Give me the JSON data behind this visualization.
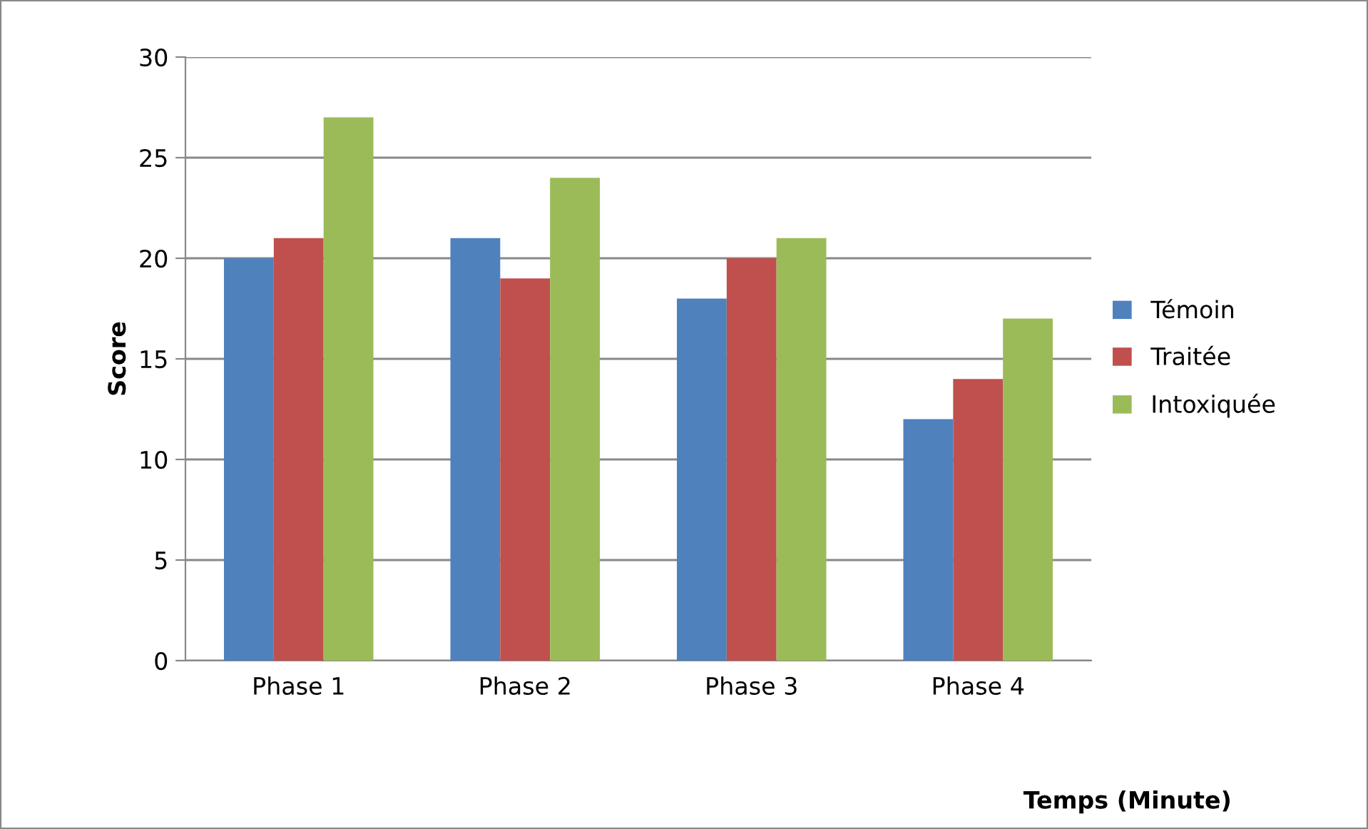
{
  "chart_data": {
    "type": "bar",
    "xlabel": "Temps (Minute)",
    "ylabel": "Score",
    "categories": [
      "Phase 1",
      "Phase 2",
      "Phase 3",
      "Phase 4"
    ],
    "series": [
      {
        "name": "Témoin",
        "color": "#4f81bd",
        "values": [
          20,
          21,
          18,
          12
        ]
      },
      {
        "name": "Traitée",
        "color": "#c0504d",
        "values": [
          21,
          19,
          20,
          14
        ]
      },
      {
        "name": "Intoxiquée",
        "color": "#9bbb59",
        "values": [
          27,
          24,
          21,
          17
        ]
      }
    ],
    "ylim": [
      0,
      30
    ],
    "yticks": [
      0,
      5,
      10,
      15,
      20,
      25,
      30
    ],
    "grid": "y",
    "legend": "right"
  }
}
